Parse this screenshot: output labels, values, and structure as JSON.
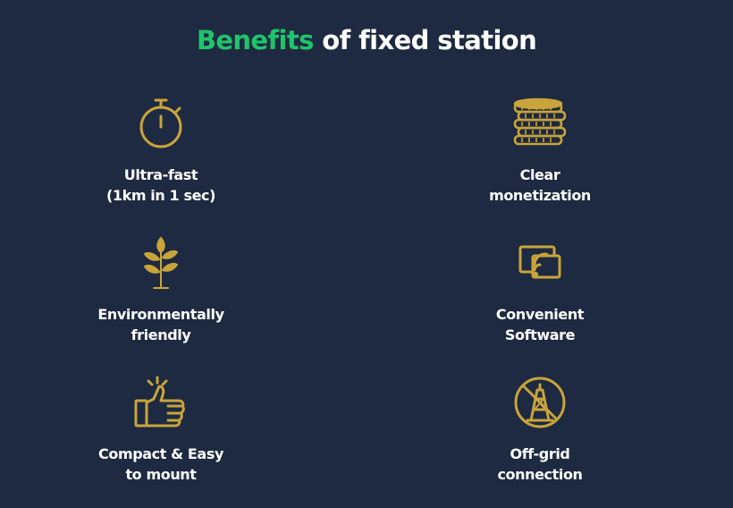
{
  "header": {
    "title_accent": "Benefits",
    "title_rest": " of fixed station"
  },
  "colors": {
    "background": "#1e2a41",
    "accent": "#1fc46b",
    "icon": "#c9a43a",
    "text": "#ffffff"
  },
  "benefits": [
    {
      "icon": "stopwatch-icon",
      "line1": "Ultra-fast",
      "line2": "(1km in 1 sec)"
    },
    {
      "icon": "coins-stack-icon",
      "line1": "Clear",
      "line2": "monetization"
    },
    {
      "icon": "plant-icon",
      "line1": "Environmentally",
      "line2": "friendly"
    },
    {
      "icon": "screen-signal-icon",
      "line1": "Convenient",
      "line2": "Software"
    },
    {
      "icon": "thumbs-up-icon",
      "line1": "Compact & Easy",
      "line2": "to mount"
    },
    {
      "icon": "no-tower-icon",
      "line1": "Off-grid",
      "line2": "connection"
    }
  ]
}
